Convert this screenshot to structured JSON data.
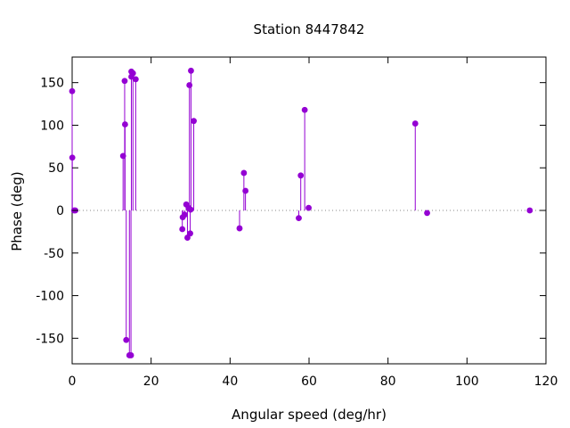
{
  "chart_data": {
    "type": "scatter",
    "style": "impulses-with-points",
    "title": "Station 8447842",
    "xlabel": "Angular speed (deg/hr)",
    "ylabel": "Phase (deg)",
    "xlim": [
      0,
      120
    ],
    "ylim": [
      -180,
      180
    ],
    "xticks": [
      "0",
      "20",
      "40",
      "60",
      "80",
      "100",
      "120"
    ],
    "yticks": [
      "-150",
      "-100",
      "-50",
      "0",
      "50",
      "100",
      "150"
    ],
    "xtick_values": [
      0,
      20,
      40,
      60,
      80,
      100,
      120
    ],
    "ytick_values": [
      -150,
      -100,
      -50,
      0,
      50,
      100,
      150
    ],
    "zero_line": true,
    "grid": false,
    "color": "#9400d3",
    "points": [
      {
        "x": 0.0,
        "y": 140
      },
      {
        "x": 0.04,
        "y": 62
      },
      {
        "x": 0.5,
        "y": 0
      },
      {
        "x": 0.8,
        "y": 0
      },
      {
        "x": 12.9,
        "y": 64
      },
      {
        "x": 13.3,
        "y": 152
      },
      {
        "x": 13.4,
        "y": 101
      },
      {
        "x": 13.7,
        "y": -152
      },
      {
        "x": 14.5,
        "y": -170
      },
      {
        "x": 14.9,
        "y": -170
      },
      {
        "x": 15.0,
        "y": 163
      },
      {
        "x": 15.0,
        "y": 157
      },
      {
        "x": 15.4,
        "y": 161
      },
      {
        "x": 16.1,
        "y": 154
      },
      {
        "x": 27.9,
        "y": -22
      },
      {
        "x": 28.0,
        "y": -8
      },
      {
        "x": 28.5,
        "y": -5
      },
      {
        "x": 28.9,
        "y": 7
      },
      {
        "x": 29.2,
        "y": -32
      },
      {
        "x": 29.5,
        "y": 3
      },
      {
        "x": 29.7,
        "y": 147
      },
      {
        "x": 29.9,
        "y": -27
      },
      {
        "x": 30.0,
        "y": 1
      },
      {
        "x": 30.1,
        "y": 164
      },
      {
        "x": 30.8,
        "y": 105
      },
      {
        "x": 42.4,
        "y": -21
      },
      {
        "x": 43.5,
        "y": 44
      },
      {
        "x": 43.9,
        "y": 23
      },
      {
        "x": 57.4,
        "y": -9
      },
      {
        "x": 57.9,
        "y": 41
      },
      {
        "x": 58.9,
        "y": 118
      },
      {
        "x": 59.9,
        "y": 3
      },
      {
        "x": 86.9,
        "y": 102
      },
      {
        "x": 89.9,
        "y": -3
      },
      {
        "x": 115.9,
        "y": 0
      }
    ]
  }
}
